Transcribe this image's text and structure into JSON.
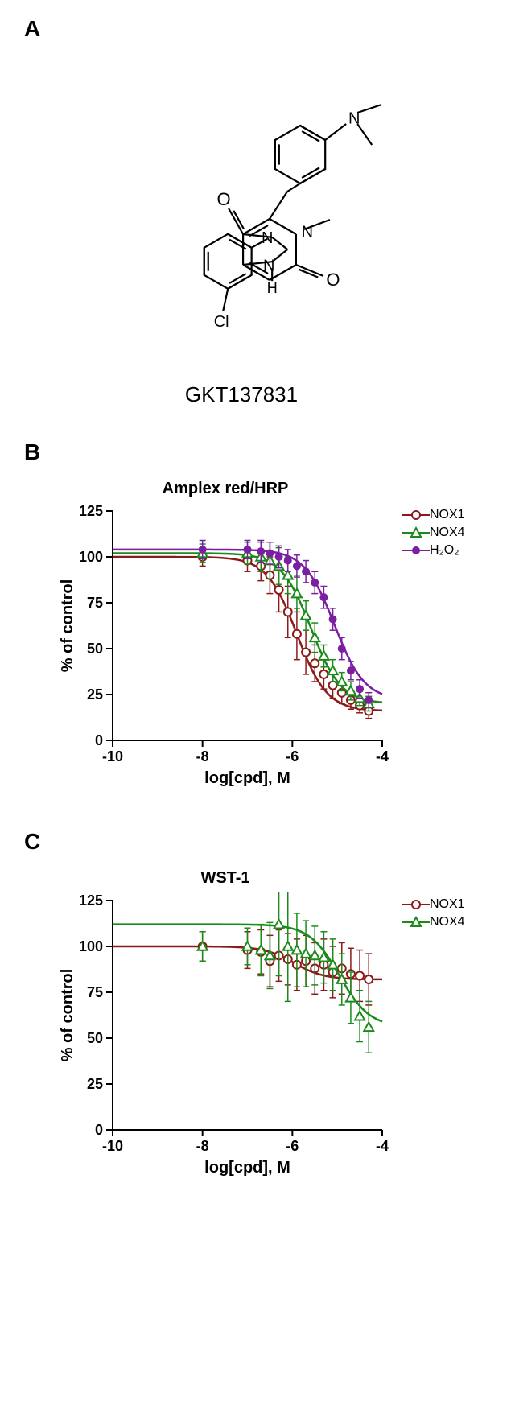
{
  "panelA": {
    "label": "A",
    "compound_name": "GKT137831",
    "structure": {
      "line_color": "#000000",
      "line_width": 2.2,
      "atoms": {
        "Cl": "Cl",
        "N": "N",
        "O": "O",
        "H": "H"
      }
    }
  },
  "panelB": {
    "label": "B",
    "chart": {
      "type": "line",
      "title": "Amplex red/HRP",
      "title_fontsize": 20,
      "xlabel": "log[cpd], M",
      "ylabel": "% of control",
      "label_fontsize": 20,
      "tick_fontsize": 18,
      "xlim": [
        -10,
        -4
      ],
      "ylim": [
        0,
        125
      ],
      "xticks": [
        -10,
        -8,
        -6,
        -4
      ],
      "yticks": [
        0,
        25,
        50,
        75,
        100,
        125
      ],
      "background_color": "#ffffff",
      "axis_color": "#000000",
      "axis_width": 2,
      "series": [
        {
          "name": "NOX1",
          "color": "#8b1a1a",
          "marker": "circle-open",
          "line_width": 2.5,
          "x": [
            -8.0,
            -7.0,
            -6.7,
            -6.5,
            -6.3,
            -6.1,
            -5.9,
            -5.7,
            -5.5,
            -5.3,
            -5.1,
            -4.9,
            -4.7,
            -4.5,
            -4.3
          ],
          "y": [
            100,
            98,
            95,
            90,
            82,
            70,
            58,
            48,
            42,
            36,
            30,
            26,
            22,
            19,
            16
          ],
          "err": [
            5,
            6,
            8,
            10,
            12,
            14,
            14,
            12,
            10,
            8,
            7,
            6,
            5,
            4,
            4
          ]
        },
        {
          "name": "NOX4",
          "color": "#1a8b1a",
          "marker": "triangle-open",
          "line_width": 2.5,
          "x": [
            -8.0,
            -7.0,
            -6.7,
            -6.5,
            -6.3,
            -6.1,
            -5.9,
            -5.7,
            -5.5,
            -5.3,
            -5.1,
            -4.9,
            -4.7,
            -4.5,
            -4.3
          ],
          "y": [
            102,
            102,
            100,
            98,
            95,
            90,
            80,
            68,
            56,
            46,
            38,
            32,
            27,
            23,
            20
          ],
          "err": [
            5,
            6,
            8,
            10,
            10,
            10,
            10,
            8,
            8,
            6,
            6,
            5,
            5,
            4,
            4
          ]
        },
        {
          "name": "H2O2",
          "name_html": "H₂O₂",
          "color": "#7b1fa2",
          "marker": "circle-filled",
          "line_width": 2.5,
          "x": [
            -8.0,
            -7.0,
            -6.7,
            -6.5,
            -6.3,
            -6.1,
            -5.9,
            -5.7,
            -5.5,
            -5.3,
            -5.1,
            -4.9,
            -4.7,
            -4.5,
            -4.3
          ],
          "y": [
            104,
            104,
            103,
            102,
            100,
            98,
            95,
            92,
            86,
            78,
            66,
            50,
            38,
            28,
            22
          ],
          "err": [
            5,
            5,
            6,
            6,
            6,
            6,
            6,
            6,
            6,
            6,
            6,
            6,
            5,
            5,
            4
          ]
        }
      ]
    }
  },
  "panelC": {
    "label": "C",
    "chart": {
      "type": "line",
      "title": "WST-1",
      "title_fontsize": 20,
      "xlabel": "log[cpd], M",
      "ylabel": "% of control",
      "label_fontsize": 20,
      "tick_fontsize": 18,
      "xlim": [
        -10,
        -4
      ],
      "ylim": [
        0,
        125
      ],
      "xticks": [
        -10,
        -8,
        -6,
        -4
      ],
      "yticks": [
        0,
        25,
        50,
        75,
        100,
        125
      ],
      "background_color": "#ffffff",
      "axis_color": "#000000",
      "axis_width": 2,
      "series": [
        {
          "name": "NOX1",
          "color": "#8b1a1a",
          "marker": "circle-open",
          "line_width": 2.5,
          "x": [
            -8.0,
            -7.0,
            -6.7,
            -6.5,
            -6.3,
            -6.1,
            -5.9,
            -5.7,
            -5.5,
            -5.3,
            -5.1,
            -4.9,
            -4.7,
            -4.5,
            -4.3
          ],
          "y": [
            100,
            98,
            97,
            92,
            95,
            93,
            90,
            92,
            88,
            90,
            86,
            88,
            85,
            84,
            82
          ],
          "err": [
            8,
            10,
            12,
            14,
            14,
            14,
            14,
            14,
            14,
            14,
            14,
            14,
            14,
            14,
            14
          ]
        },
        {
          "name": "NOX4",
          "color": "#1a8b1a",
          "marker": "triangle-open",
          "line_width": 2.5,
          "x": [
            -8.0,
            -7.0,
            -6.7,
            -6.5,
            -6.3,
            -6.1,
            -5.9,
            -5.7,
            -5.5,
            -5.3,
            -5.1,
            -4.9,
            -4.7,
            -4.5,
            -4.3
          ],
          "y": [
            100,
            100,
            98,
            95,
            112,
            100,
            98,
            96,
            95,
            94,
            90,
            82,
            72,
            62,
            56
          ],
          "err": [
            8,
            10,
            14,
            18,
            28,
            30,
            20,
            18,
            16,
            14,
            14,
            14,
            14,
            14,
            14
          ]
        }
      ]
    }
  }
}
